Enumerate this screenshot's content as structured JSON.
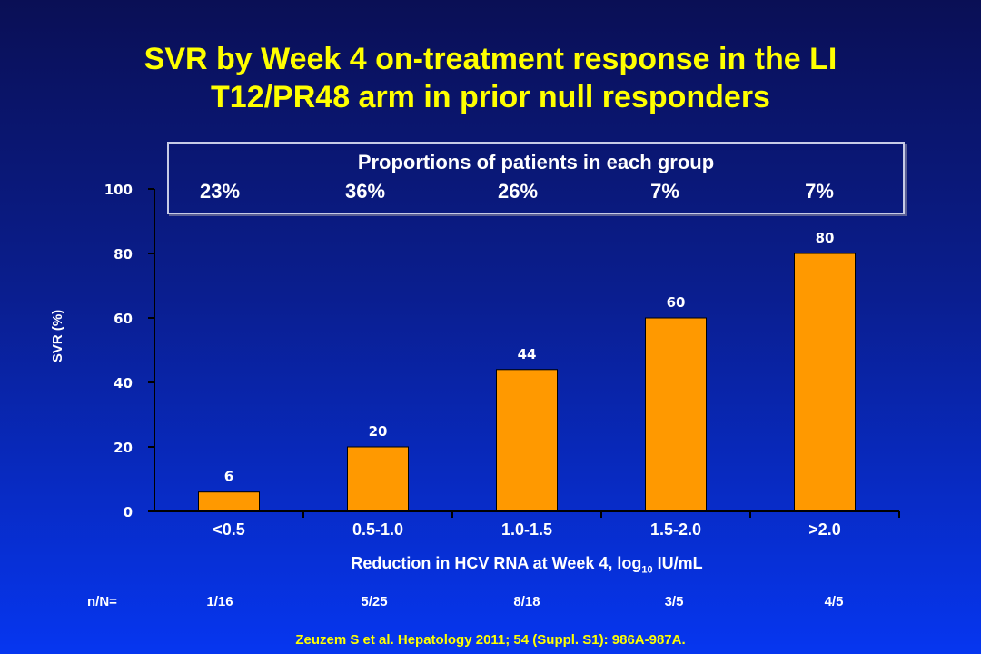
{
  "title": {
    "line1": "SVR by Week 4 on-treatment response in the LI",
    "line2": "T12/PR48 arm in prior null responders"
  },
  "proportions": {
    "heading": "Proportions of patients in each group",
    "values": [
      "23%",
      "36%",
      "26%",
      "7%",
      "7%"
    ]
  },
  "chart_data": {
    "type": "bar",
    "categories": [
      "<0.5",
      "0.5-1.0",
      "1.0-1.5",
      "1.5-2.0",
      ">2.0"
    ],
    "values": [
      6,
      20,
      44,
      60,
      80
    ],
    "data_labels": [
      "6",
      "20",
      "44",
      "60",
      "80"
    ],
    "ylabel": "SVR (%)",
    "xlabel_main": "Reduction in HCV RNA at Week 4, log",
    "xlabel_sub": "10",
    "xlabel_end": " IU/mL",
    "ylim": [
      0,
      100
    ],
    "yticks": [
      0,
      20,
      40,
      60,
      80,
      100
    ],
    "grid": false,
    "bar_color": "#ff9900"
  },
  "counts": {
    "label": "n/N=",
    "values": [
      "1/16",
      "5/25",
      "8/18",
      "3/5",
      "4/5"
    ]
  },
  "citation": "Zeuzem S et al. Hepatology 2011; 54 (Suppl. S1): 986A-987A.",
  "colors": {
    "title": "#ffff00",
    "text": "#ffffff",
    "bar": "#ff9900",
    "background_top": "#0a0f55",
    "background_bottom": "#0636f0"
  }
}
